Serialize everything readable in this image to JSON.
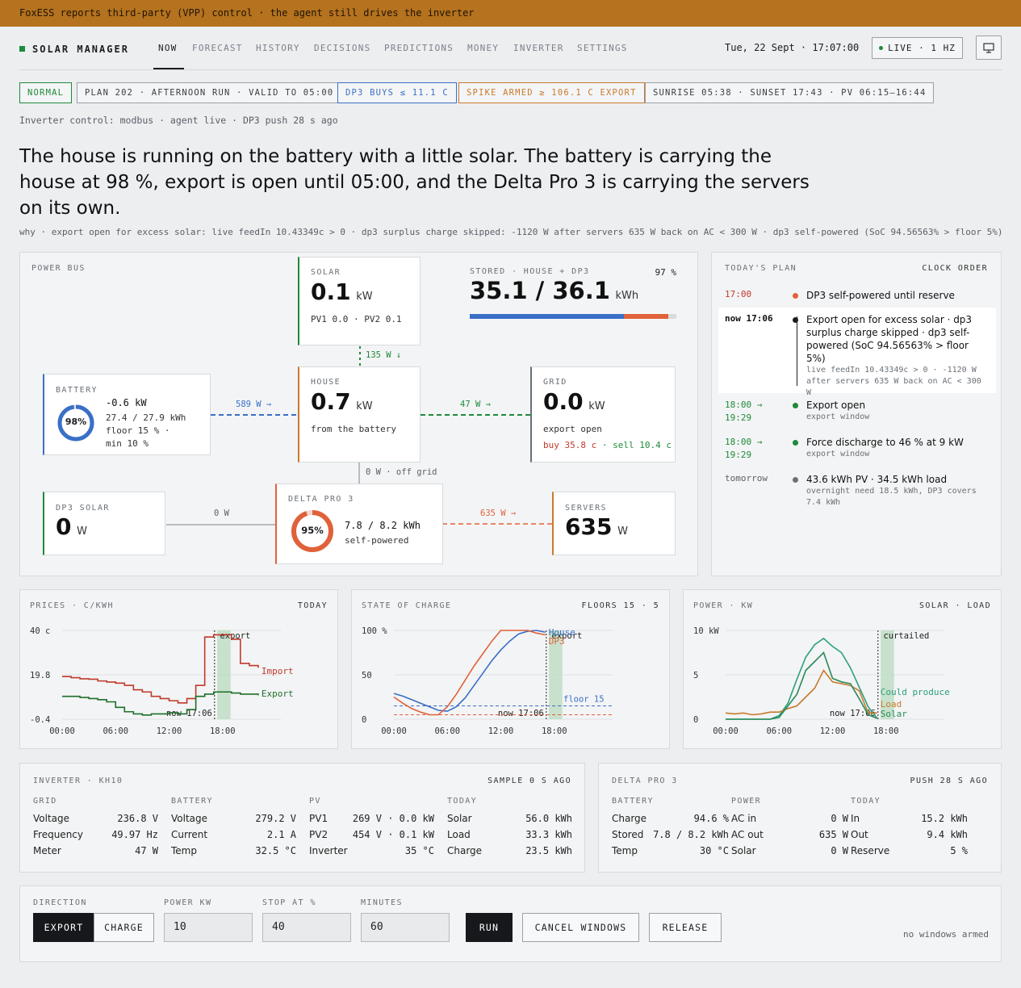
{
  "banner": "FoxESS reports third-party (VPP) control · the agent still drives the inverter",
  "app": {
    "title": "SOLAR MANAGER"
  },
  "nav": {
    "tabs": [
      "NOW",
      "FORECAST",
      "HISTORY",
      "DECISIONS",
      "PREDICTIONS",
      "MONEY",
      "INVERTER",
      "SETTINGS"
    ],
    "active": "NOW"
  },
  "header": {
    "datetime": "Tue, 22 Sept · 17:07:00",
    "live": "LIVE · 1 HZ"
  },
  "chips": [
    "NORMAL",
    "PLAN 202 · AFTERNOON RUN · VALID TO 05:00",
    "DP3 BUYS ≤ 11.1 C",
    "SPIKE ARMED ≥ 106.1 C EXPORT",
    "SUNRISE 05:38 · SUNSET 17:43 · PV 06:15–16:44"
  ],
  "status_line": "Inverter control: modbus · agent live · DP3 push 28 s ago",
  "headline": "The house is running on the battery with a little solar. The battery is carrying the house at 98 %, export is open until 05:00, and the Delta Pro 3 is carrying the servers on its own.",
  "why": "why · export open for excess solar: live feedIn 10.43349c > 0 · dp3 surplus charge skipped: -1120 W after servers 635 W back on AC < 300 W · dp3 self-powered (SoC 94.56563% > floor 5%)",
  "power_bus": {
    "label": "POWER BUS",
    "solar": {
      "label": "SOLAR",
      "value": "0.1",
      "unit": "kW",
      "detail": "PV1 0.0 · PV2 0.1"
    },
    "stored": {
      "label": "STORED · HOUSE + DP3",
      "pct": "97 %",
      "value": "35.1 / 36.1",
      "unit": "kWh",
      "house_frac": 0.77,
      "dp3_frac": 0.22
    },
    "battery": {
      "label": "BATTERY",
      "soc": "98%",
      "soc_frac": 0.98,
      "power": "-0.6 kW",
      "energy": "27.4 / 27.9 kWh",
      "floor": "floor 15 % ·",
      "min": "min 10 %"
    },
    "house": {
      "label": "HOUSE",
      "value": "0.7",
      "unit": "kW",
      "detail": "from the battery"
    },
    "grid": {
      "label": "GRID",
      "value": "0.0",
      "unit": "kW",
      "detail": "export open",
      "buy": "buy 35.8 c",
      "sell": "· sell 10.4 c"
    },
    "dp3_solar": {
      "label": "DP3 SOLAR",
      "value": "0",
      "unit": "W"
    },
    "delta": {
      "label": "DELTA PRO 3",
      "soc": "95%",
      "soc_frac": 0.95,
      "energy": "7.8 / 8.2 kWh",
      "detail": "self-powered"
    },
    "servers": {
      "label": "SERVERS",
      "value": "635",
      "unit": "W"
    },
    "flows": {
      "solar_house": "135 W ↓",
      "battery_house": "589 W →",
      "house_grid": "47 W →",
      "house_delta": "0 W · off grid",
      "dp3solar_delta": "0 W",
      "delta_servers": "635 W →"
    }
  },
  "plan": {
    "label": "TODAY'S PLAN",
    "order": "CLOCK ORDER",
    "items": [
      {
        "time": "17:00",
        "text": "DP3 self-powered until reserve",
        "sub": ""
      },
      {
        "time": "now 17:06",
        "text": "Export open for excess solar · dp3 surplus charge skipped · dp3 self-powered (SoC 94.56563% > floor 5%)",
        "sub": "live feedIn 10.43349c > 0 · -1120 W after servers 635 W back on AC < 300 W"
      },
      {
        "time": "18:00 → 19:29",
        "text": "Export open",
        "sub": "export window"
      },
      {
        "time": "18:00 → 19:29",
        "text": "Force discharge to 46 % at 9 kW",
        "sub": "export window"
      },
      {
        "time": "tomorrow",
        "text": "43.6 kWh PV · 34.5 kWh load",
        "sub": "overnight need 18.5 kWh, DP3 covers 7.4 kWh"
      }
    ]
  },
  "charts": {
    "prices": {
      "label": "PRICES · C/KWH",
      "right": "TODAY",
      "yticks": [
        "40 c",
        "19.8",
        "-0.4"
      ],
      "xticks": [
        "00:00",
        "06:00",
        "12:00",
        "18:00"
      ],
      "now": "now 17:06",
      "band": "export",
      "series": [
        "Import",
        "Export"
      ]
    },
    "soc": {
      "label": "STATE OF CHARGE",
      "right": "FLOORS 15 · 5",
      "yticks": [
        "100 %",
        "50",
        "0"
      ],
      "xticks": [
        "00:00",
        "06:00",
        "12:00",
        "18:00"
      ],
      "now": "now 17:06",
      "band": "export",
      "series": [
        "House",
        "DP3"
      ],
      "floor": "floor 15"
    },
    "power": {
      "label": "POWER · KW",
      "right": "SOLAR · LOAD",
      "yticks": [
        "10 kW",
        "5",
        "0"
      ],
      "xticks": [
        "00:00",
        "06:00",
        "12:00",
        "18:00"
      ],
      "now": "now 17:06",
      "band": "curtailed",
      "series": [
        "Could produce",
        "Load",
        "Solar"
      ]
    }
  },
  "chart_data": [
    {
      "type": "line",
      "title": "PRICES · C/KWH",
      "ylim": [
        -0.4,
        40
      ],
      "x": [
        0,
        1,
        2,
        3,
        4,
        5,
        6,
        7,
        8,
        9,
        10,
        11,
        12,
        13,
        14,
        15,
        16,
        17,
        18,
        19,
        20,
        21,
        22
      ],
      "series": [
        {
          "name": "Import",
          "values": [
            19,
            18.5,
            18,
            17.8,
            17,
            16.5,
            16,
            15,
            13,
            12,
            10,
            9,
            8,
            7,
            9,
            15,
            37,
            38,
            38,
            36,
            25,
            24,
            23
          ]
        },
        {
          "name": "Export",
          "values": [
            10,
            10,
            9.5,
            9,
            8.5,
            7.5,
            5,
            3,
            2,
            1.5,
            2,
            2,
            2.5,
            2,
            4,
            10,
            11,
            12,
            12,
            11.5,
            11,
            11,
            10.5
          ]
        }
      ]
    },
    {
      "type": "line",
      "title": "STATE OF CHARGE",
      "ylim": [
        0,
        100
      ],
      "x": [
        0,
        1,
        2,
        3,
        4,
        5,
        6,
        7,
        8,
        9,
        10,
        11,
        12,
        13,
        14,
        15,
        16,
        17
      ],
      "series": [
        {
          "name": "House",
          "values": [
            29,
            26,
            22,
            18,
            14,
            10,
            9,
            14,
            24,
            38,
            52,
            66,
            78,
            88,
            96,
            99,
            100,
            98
          ]
        },
        {
          "name": "DP3",
          "values": [
            25,
            18,
            12,
            8,
            5,
            5,
            14,
            28,
            44,
            60,
            74,
            88,
            100,
            100,
            100,
            100,
            97,
            95
          ]
        }
      ]
    },
    {
      "type": "line",
      "title": "POWER · KW",
      "ylim": [
        0,
        10
      ],
      "x": [
        0,
        1,
        2,
        3,
        4,
        5,
        6,
        7,
        8,
        9,
        10,
        11,
        12,
        13,
        14,
        15,
        16,
        17
      ],
      "series": [
        {
          "name": "Could produce",
          "values": [
            0,
            0,
            0,
            0,
            0,
            0,
            0.4,
            1.8,
            4.5,
            7,
            8.4,
            9.1,
            8.2,
            7.5,
            5.8,
            3.6,
            1.4,
            0.1
          ]
        },
        {
          "name": "Load",
          "values": [
            0.7,
            0.6,
            0.7,
            0.5,
            0.6,
            0.8,
            0.8,
            1.2,
            1.5,
            2.5,
            3.5,
            5.5,
            4.2,
            4,
            3.8,
            3.2,
            0.7,
            0.7
          ]
        },
        {
          "name": "Solar",
          "values": [
            0,
            0,
            0,
            0,
            0,
            0,
            0.2,
            1.5,
            2.8,
            5.5,
            6.5,
            7.5,
            4.6,
            4.2,
            4,
            2.3,
            0.5,
            0.1
          ]
        }
      ]
    }
  ],
  "inverter": {
    "label": "INVERTER · KH10",
    "right": "SAMPLE 0 S AGO",
    "cols": [
      {
        "head": "GRID",
        "rows": [
          [
            "Voltage",
            "236.8 V"
          ],
          [
            "Frequency",
            "49.97 Hz"
          ],
          [
            "Meter",
            "47 W"
          ]
        ]
      },
      {
        "head": "BATTERY",
        "rows": [
          [
            "Voltage",
            "279.2 V"
          ],
          [
            "Current",
            "2.1 A"
          ],
          [
            "Temp",
            "32.5 °C"
          ]
        ]
      },
      {
        "head": "PV",
        "rows": [
          [
            "PV1",
            "269 V · 0.0 kW"
          ],
          [
            "PV2",
            "454 V · 0.1 kW"
          ],
          [
            "Inverter",
            "35 °C"
          ]
        ]
      },
      {
        "head": "TODAY",
        "rows": [
          [
            "Solar",
            "56.0 kWh"
          ],
          [
            "Load",
            "33.3 kWh"
          ],
          [
            "Charge",
            "23.5 kWh"
          ]
        ]
      }
    ]
  },
  "delta_panel": {
    "label": "DELTA PRO 3",
    "right": "PUSH 28 S AGO",
    "cols": [
      {
        "head": "BATTERY",
        "rows": [
          [
            "Charge",
            "94.6 %"
          ],
          [
            "Stored",
            "7.8 / 8.2 kWh"
          ],
          [
            "Temp",
            "30 °C"
          ]
        ]
      },
      {
        "head": "POWER",
        "rows": [
          [
            "AC in",
            "0 W"
          ],
          [
            "AC out",
            "635 W"
          ],
          [
            "Solar",
            "0 W"
          ]
        ]
      },
      {
        "head": "TODAY",
        "rows": [
          [
            "In",
            "15.2 kWh"
          ],
          [
            "Out",
            "9.4 kWh"
          ],
          [
            "Reserve",
            "5 %"
          ]
        ]
      }
    ]
  },
  "control": {
    "direction_label": "DIRECTION",
    "export": "EXPORT",
    "charge": "CHARGE",
    "power_label": "POWER KW",
    "power_value": "10",
    "stop_label": "STOP AT %",
    "stop_value": "40",
    "minutes_label": "MINUTES",
    "minutes_value": "60",
    "run": "RUN",
    "cancel": "CANCEL WINDOWS",
    "release": "RELEASE",
    "note": "no windows armed"
  },
  "colors": {
    "accent_green": "#1e8a3a",
    "battery_blue": "#3a6fc7",
    "dp3_orange": "#e0623a",
    "grid_orange": "#c97a2c",
    "banner": "#b5721f"
  }
}
